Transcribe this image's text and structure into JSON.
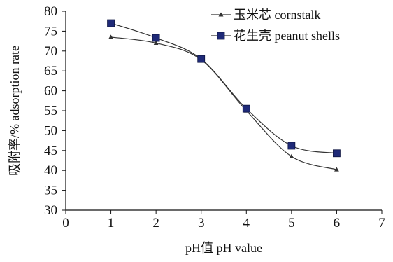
{
  "chart_data": {
    "type": "line",
    "xlabel": "pH值 pH value",
    "ylabel": "吸附率/% adsorption rate",
    "xlim": [
      0,
      7
    ],
    "ylim": [
      30,
      80
    ],
    "x_ticks": [
      0,
      1,
      2,
      3,
      4,
      5,
      6,
      7
    ],
    "y_ticks": [
      30,
      35,
      40,
      45,
      50,
      55,
      60,
      65,
      70,
      75,
      80
    ],
    "grid": false,
    "legend_position": "top-right",
    "series": [
      {
        "name": "玉米芯 cornstalk",
        "marker": "triangle",
        "color": "#333333",
        "x": [
          1,
          2,
          3,
          4,
          5,
          6
        ],
        "y": [
          73.5,
          72.0,
          67.8,
          55.0,
          43.5,
          40.2
        ]
      },
      {
        "name": "花生壳 peanut shells",
        "marker": "square",
        "color": "#1f2a78",
        "x": [
          1,
          2,
          3,
          4,
          5,
          6
        ],
        "y": [
          77.0,
          73.3,
          68.0,
          55.5,
          46.2,
          44.3
        ]
      }
    ]
  }
}
